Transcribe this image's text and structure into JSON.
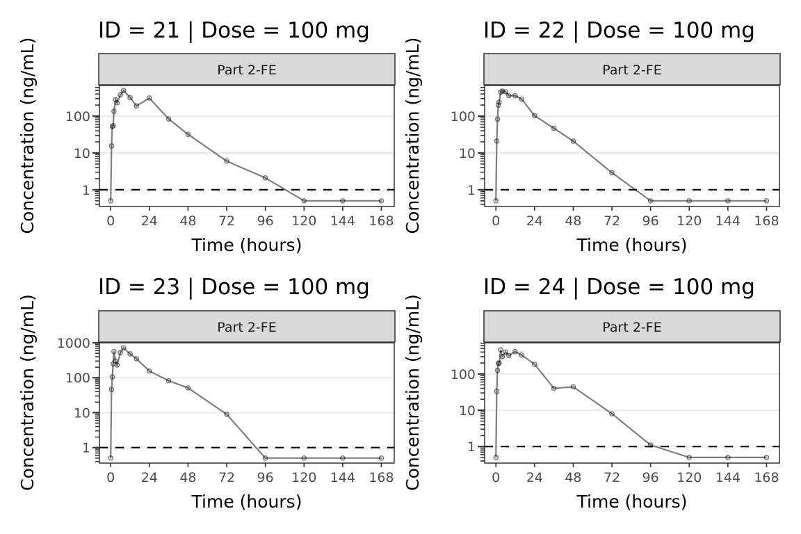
{
  "chart_data": [
    {
      "type": "line",
      "title": "ID = 21 | Dose = 100 mg",
      "facet_label": "Part 2-FE",
      "xlabel": "Time (hours)",
      "ylabel": "Concentration (ng/mL)",
      "x_ticks": [
        0,
        24,
        48,
        72,
        96,
        120,
        144,
        168
      ],
      "y_scale": "log10",
      "y_ticks": [
        1,
        10,
        100
      ],
      "xlim": [
        -7,
        176
      ],
      "ylim": [
        0.35,
        680
      ],
      "reference_line": {
        "y": 1,
        "style": "dashed"
      },
      "x": [
        0,
        0.5,
        1,
        1.5,
        2,
        3,
        4,
        6,
        8,
        12,
        16,
        24,
        36,
        48,
        72,
        96,
        120,
        144,
        168
      ],
      "y": [
        0.5,
        15.5,
        52,
        55,
        135,
        280,
        230,
        380,
        500,
        320,
        190,
        310,
        84,
        32,
        6,
        2.1,
        0.5,
        0.5,
        0.5
      ]
    },
    {
      "type": "line",
      "title": "ID = 22 | Dose = 100 mg",
      "facet_label": "Part 2-FE",
      "xlabel": "Time (hours)",
      "ylabel": "Concentration (ng/mL)",
      "x_ticks": [
        0,
        24,
        48,
        72,
        96,
        120,
        144,
        168
      ],
      "y_scale": "log10",
      "y_ticks": [
        1,
        10,
        100
      ],
      "xlim": [
        -7,
        176
      ],
      "ylim": [
        0.35,
        680
      ],
      "reference_line": {
        "y": 1,
        "style": "dashed"
      },
      "x": [
        0,
        0.5,
        1,
        1.5,
        2,
        3,
        4,
        6,
        8,
        12,
        16,
        24,
        36,
        48,
        72,
        96,
        120,
        144,
        168
      ],
      "y": [
        0.5,
        21,
        83,
        200,
        240,
        450,
        480,
        460,
        360,
        360,
        290,
        103,
        47,
        21,
        2.9,
        0.5,
        0.5,
        0.5,
        0.5
      ]
    },
    {
      "type": "line",
      "title": "ID = 23 | Dose = 100 mg",
      "facet_label": "Part 2-FE",
      "xlabel": "Time (hours)",
      "ylabel": "Concentration (ng/mL)",
      "x_ticks": [
        0,
        24,
        48,
        72,
        96,
        120,
        144,
        168
      ],
      "y_scale": "log10",
      "y_ticks": [
        1,
        10,
        100,
        1000
      ],
      "xlim": [
        -7,
        176
      ],
      "ylim": [
        0.36,
        1000
      ],
      "reference_line": {
        "y": 1,
        "style": "dashed"
      },
      "x": [
        0,
        0.5,
        1,
        1.5,
        2,
        3,
        4,
        6,
        8,
        12,
        16,
        24,
        36,
        48,
        72,
        96,
        120,
        144,
        168
      ],
      "y": [
        0.5,
        46,
        105,
        250,
        560,
        300,
        230,
        520,
        720,
        480,
        350,
        155,
        82,
        51,
        9,
        0.5,
        0.5,
        0.5,
        0.5
      ]
    },
    {
      "type": "line",
      "title": "ID = 24 | Dose = 100 mg",
      "facet_label": "Part 2-FE",
      "xlabel": "Time (hours)",
      "ylabel": "Concentration (ng/mL)",
      "x_ticks": [
        0,
        24,
        48,
        72,
        96,
        120,
        144,
        168
      ],
      "y_scale": "log10",
      "y_ticks": [
        1,
        10,
        100
      ],
      "xlim": [
        -7,
        176
      ],
      "ylim": [
        0.35,
        720
      ],
      "reference_line": {
        "y": 1,
        "style": "dashed"
      },
      "x": [
        0,
        0.5,
        1,
        1.5,
        2,
        3,
        4,
        6,
        8,
        12,
        16,
        24,
        36,
        48,
        72,
        96,
        120,
        144,
        168
      ],
      "y": [
        0.5,
        33,
        125,
        195,
        200,
        460,
        300,
        400,
        320,
        410,
        330,
        185,
        40,
        44,
        8,
        1.1,
        0.5,
        0.5,
        0.5
      ]
    }
  ]
}
